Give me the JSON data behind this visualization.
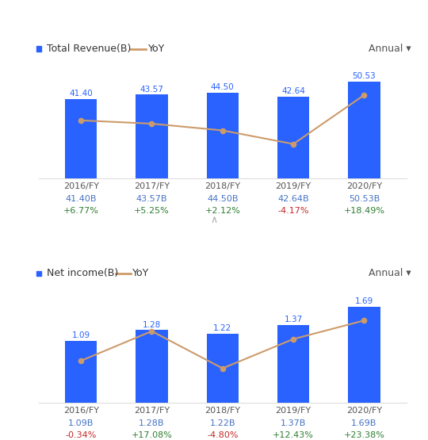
{
  "chart1": {
    "title": "Total Revenue(B)",
    "categories": [
      "2016/FY",
      "2017/FY",
      "2018/FY",
      "2019/FY",
      "2020/FY"
    ],
    "bar_values": [
      41.4,
      43.57,
      44.5,
      42.64,
      50.53
    ],
    "yoy_values": [
      6.77,
      5.25,
      2.12,
      -4.17,
      18.49
    ],
    "yoy_labels": [
      "+6.77%",
      "+5.25%",
      "+2.12%",
      "-4.17%",
      "+18.49%"
    ],
    "value_labels": [
      "41.40B",
      "43.57B",
      "44.50B",
      "42.64B",
      "50.53B"
    ],
    "bar_ylim": [
      0,
      62
    ],
    "yoy_ylim": [
      -20,
      35
    ]
  },
  "chart2": {
    "title": "Net income(B)",
    "categories": [
      "2016/FY",
      "2017/FY",
      "2018/FY",
      "2019/FY",
      "2020/FY"
    ],
    "bar_values": [
      1.09,
      1.28,
      1.22,
      1.37,
      1.69
    ],
    "yoy_values": [
      -0.34,
      17.08,
      -4.8,
      12.43,
      23.38
    ],
    "yoy_labels": [
      "-0.34%",
      "+17.08%",
      "-4.80%",
      "+12.43%",
      "+23.38%"
    ],
    "value_labels": [
      "1.09B",
      "1.28B",
      "1.22B",
      "1.37B",
      "1.69B"
    ],
    "bar_ylim": [
      0,
      2.1
    ],
    "yoy_ylim": [
      -25,
      45
    ]
  },
  "annual_label": "Annual ▾",
  "bar_color": "#2962FF",
  "line_color": "#CD9B6A",
  "value_label_color": "#4472C4",
  "yoy_positive_color": "#2E7D32",
  "yoy_negative_color": "#C62828",
  "category_color": "#555555",
  "legend_title_color": "#333333",
  "annual_color": "#555555",
  "arrow_color": "#AAAAAA",
  "bg_color": "#FFFFFF",
  "bar_width": 0.45
}
